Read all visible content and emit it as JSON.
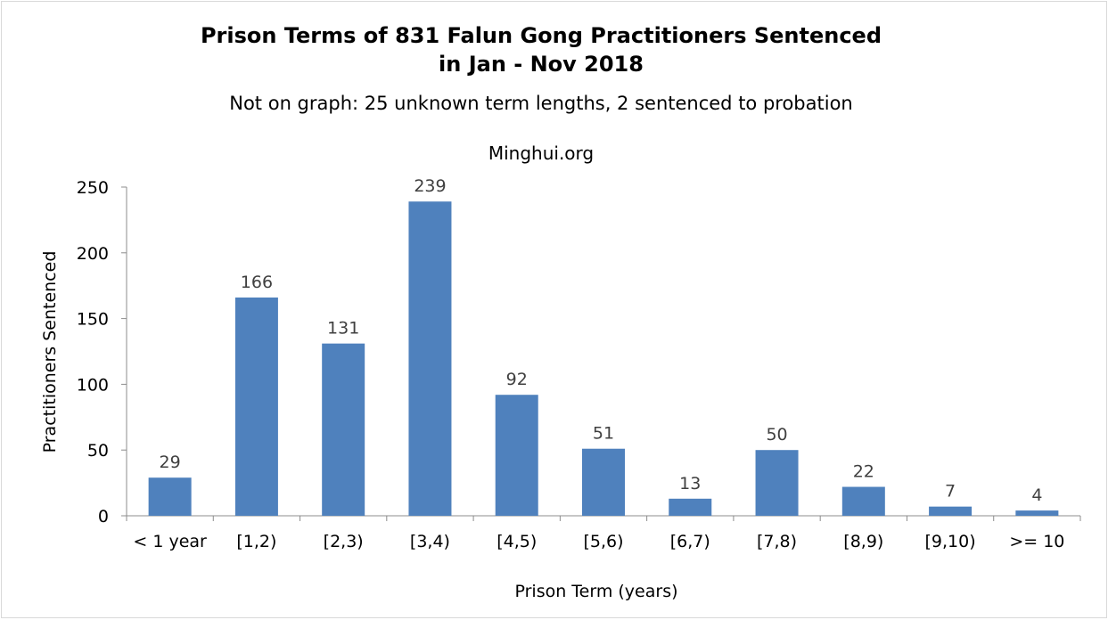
{
  "chart_data": {
    "type": "bar",
    "title_line1": "Prison Terms of 831 Falun Gong Practitioners Sentenced",
    "title_line2": "in Jan - Nov 2018",
    "subtitle": "Not on graph: 25 unknown term lengths, 2 sentenced to probation",
    "source": "Minghui.org",
    "xlabel": "Prison Term (years)",
    "ylabel": "Practitioners Sentenced",
    "categories": [
      "< 1 year",
      "[1,2)",
      "[2,3)",
      "[3,4)",
      "[4,5)",
      "[5,6)",
      "[6,7)",
      "[7,8)",
      "[8,9)",
      "[9,10)",
      ">= 10"
    ],
    "values": [
      29,
      166,
      131,
      239,
      92,
      51,
      13,
      50,
      22,
      7,
      4
    ],
    "ylim": [
      0,
      250
    ],
    "yticks": [
      0,
      50,
      100,
      150,
      200,
      250
    ],
    "grid": false,
    "legend": "none",
    "bar_color": "#4f81bd"
  }
}
